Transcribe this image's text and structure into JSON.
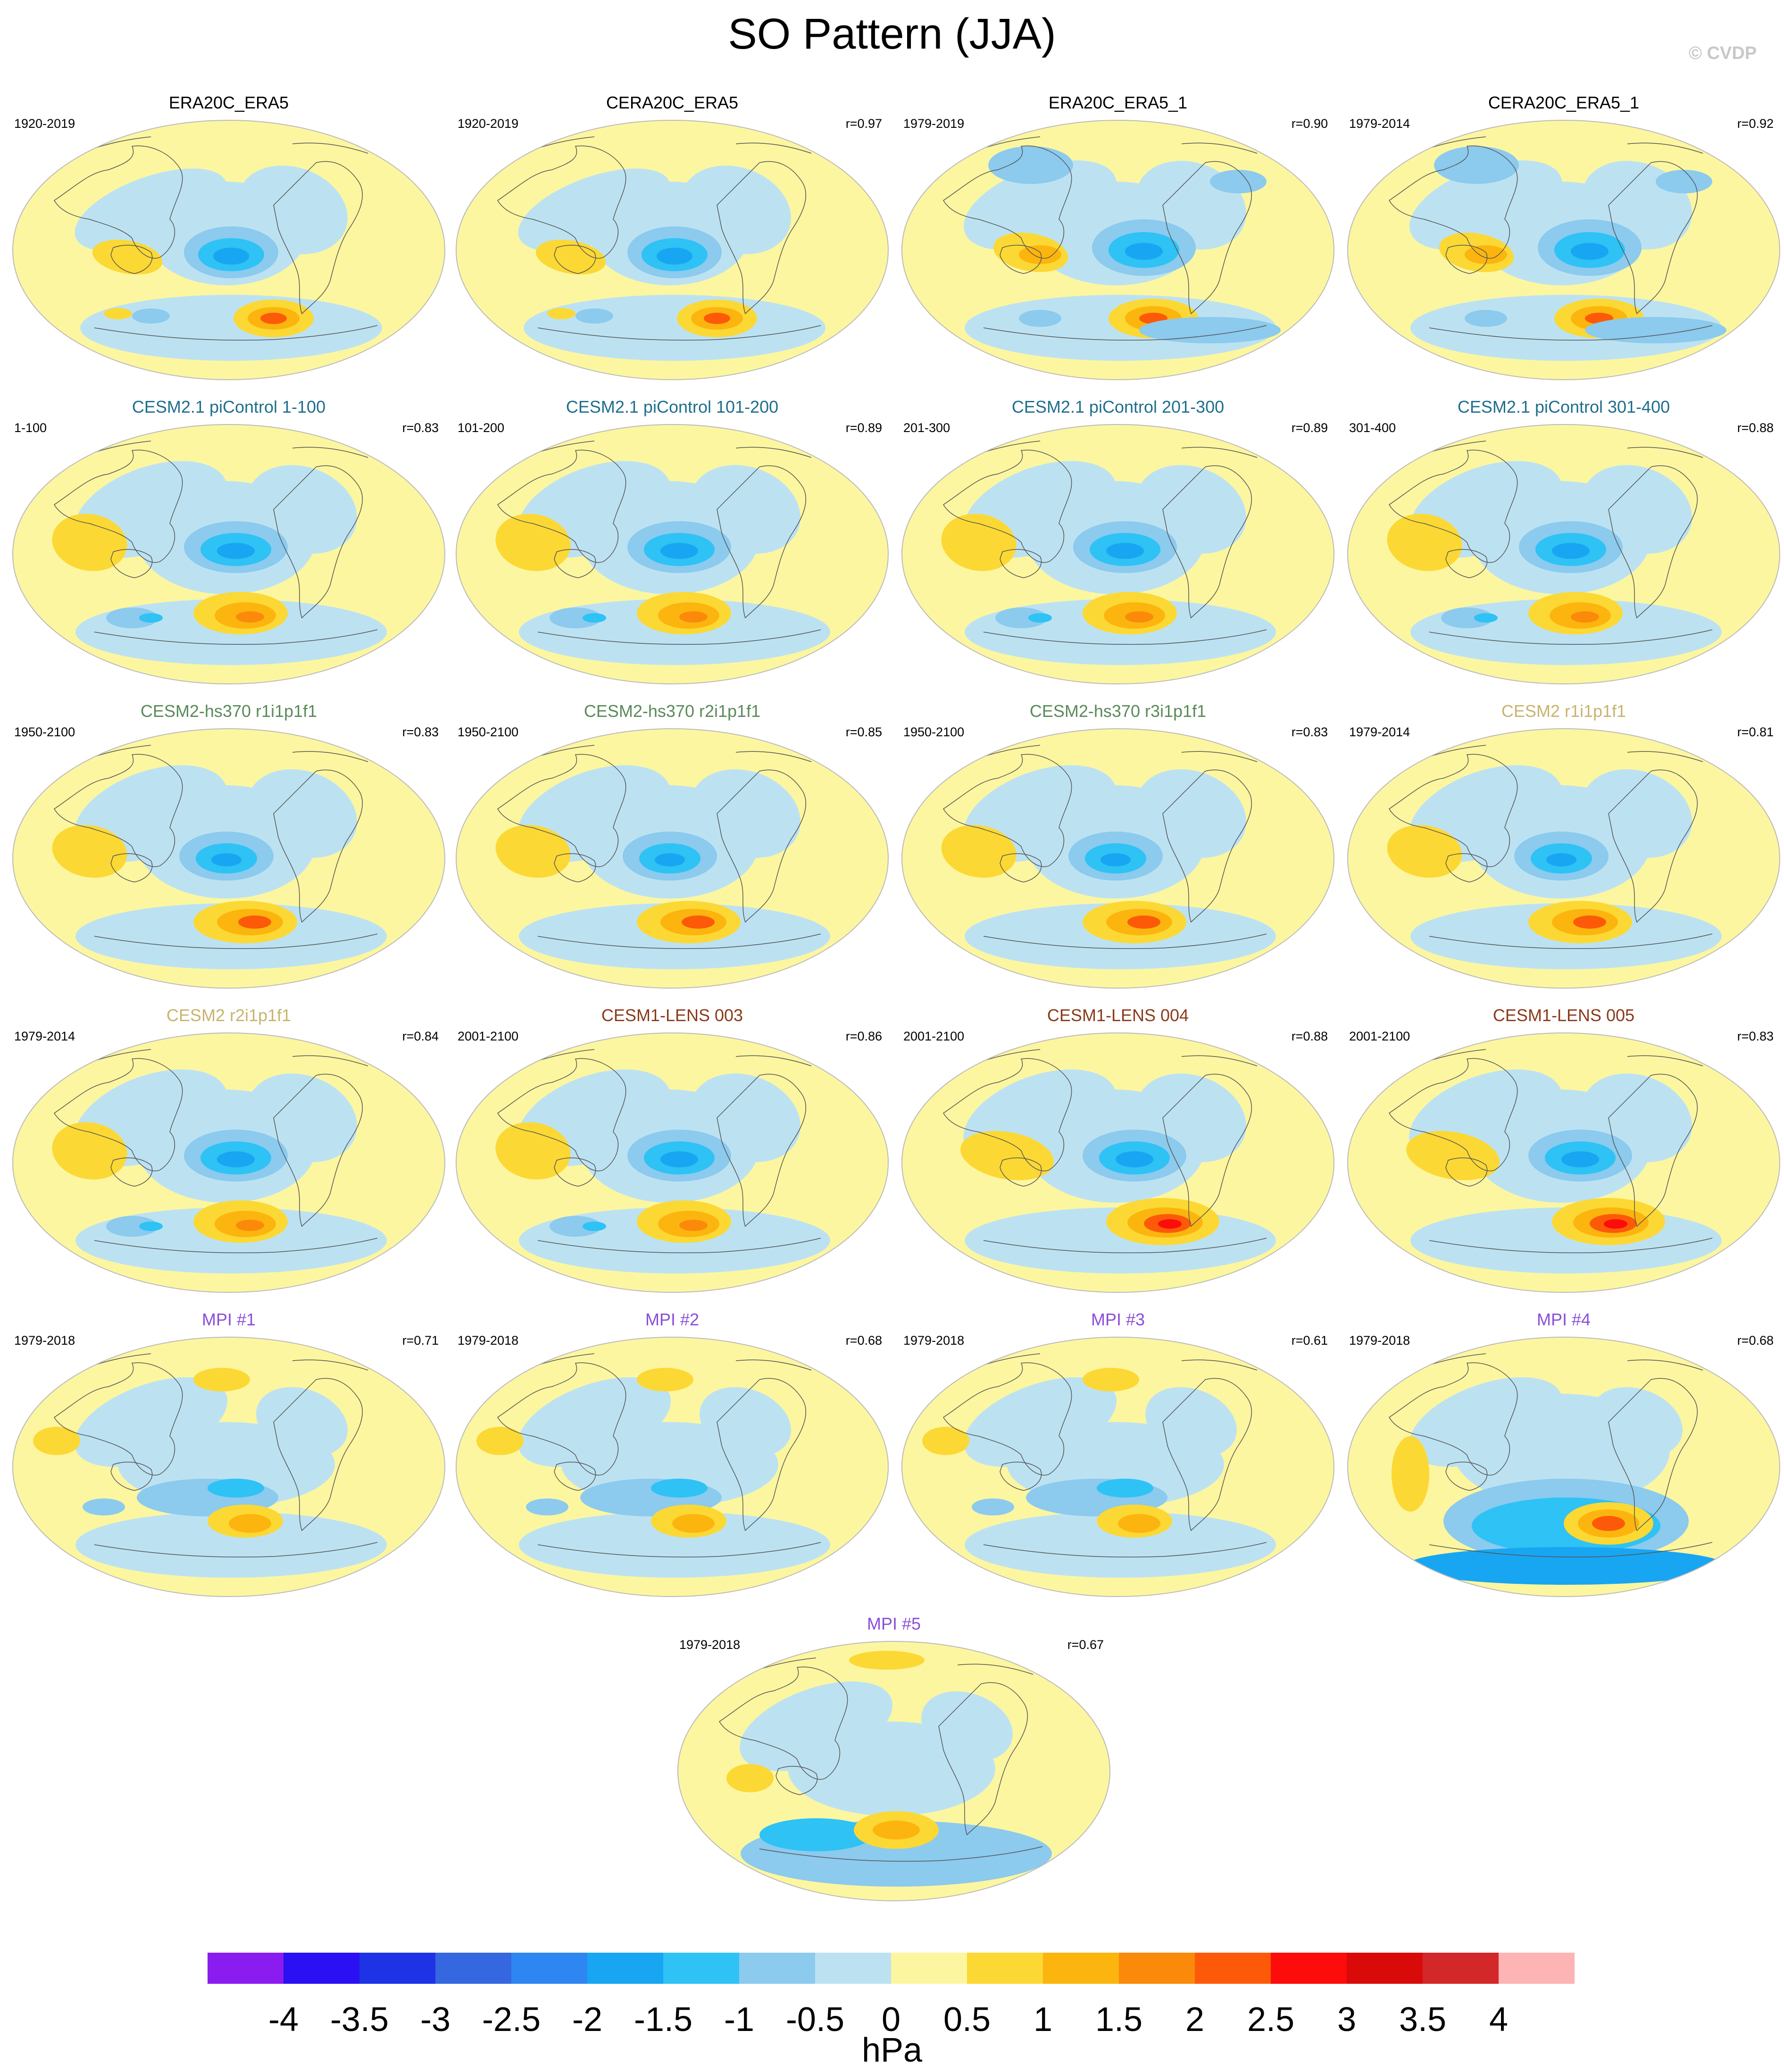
{
  "title": "SO Pattern (JJA)",
  "copyright": "© CVDP",
  "panels": [
    {
      "title": "ERA20C_ERA5",
      "title_color": "#000000",
      "period": "1920-2019",
      "r": "",
      "style": 0
    },
    {
      "title": "CERA20C_ERA5",
      "title_color": "#000000",
      "period": "1920-2019",
      "r": "r=0.97",
      "style": 0
    },
    {
      "title": "ERA20C_ERA5_1",
      "title_color": "#000000",
      "period": "1979-2019",
      "r": "r=0.90",
      "style": 1
    },
    {
      "title": "CERA20C_ERA5_1",
      "title_color": "#000000",
      "period": "1979-2014",
      "r": "r=0.92",
      "style": 1
    },
    {
      "title": "CESM2.1 piControl 1-100",
      "title_color": "#1f6e8c",
      "period": "1-100",
      "r": "r=0.83",
      "style": 2
    },
    {
      "title": "CESM2.1 piControl 101-200",
      "title_color": "#1f6e8c",
      "period": "101-200",
      "r": "r=0.89",
      "style": 2
    },
    {
      "title": "CESM2.1 piControl 201-300",
      "title_color": "#1f6e8c",
      "period": "201-300",
      "r": "r=0.89",
      "style": 2
    },
    {
      "title": "CESM2.1 piControl 301-400",
      "title_color": "#1f6e8c",
      "period": "301-400",
      "r": "r=0.88",
      "style": 2
    },
    {
      "title": "CESM2-hs370 r1i1p1f1",
      "title_color": "#5a8a5a",
      "period": "1950-2100",
      "r": "r=0.83",
      "style": 3
    },
    {
      "title": "CESM2-hs370 r2i1p1f1",
      "title_color": "#5a8a5a",
      "period": "1950-2100",
      "r": "r=0.85",
      "style": 3
    },
    {
      "title": "CESM2-hs370 r3i1p1f1",
      "title_color": "#5a8a5a",
      "period": "1950-2100",
      "r": "r=0.83",
      "style": 3
    },
    {
      "title": "CESM2 r1i1p1f1",
      "title_color": "#c8b46e",
      "period": "1979-2014",
      "r": "r=0.81",
      "style": 3
    },
    {
      "title": "CESM2 r2i1p1f1",
      "title_color": "#c8b46e",
      "period": "1979-2014",
      "r": "r=0.84",
      "style": 2
    },
    {
      "title": "CESM1-LENS 003",
      "title_color": "#8b3a1a",
      "period": "2001-2100",
      "r": "r=0.86",
      "style": 2
    },
    {
      "title": "CESM1-LENS 004",
      "title_color": "#8b3a1a",
      "period": "2001-2100",
      "r": "r=0.88",
      "style": 4
    },
    {
      "title": "CESM1-LENS 005",
      "title_color": "#8b3a1a",
      "period": "2001-2100",
      "r": "r=0.83",
      "style": 4
    },
    {
      "title": "MPI #1",
      "title_color": "#8a4fd8",
      "period": "1979-2018",
      "r": "r=0.71",
      "style": 5
    },
    {
      "title": "MPI #2",
      "title_color": "#8a4fd8",
      "period": "1979-2018",
      "r": "r=0.68",
      "style": 5
    },
    {
      "title": "MPI #3",
      "title_color": "#8a4fd8",
      "period": "1979-2018",
      "r": "r=0.61",
      "style": 5
    },
    {
      "title": "MPI #4",
      "title_color": "#8a4fd8",
      "period": "1979-2018",
      "r": "r=0.68",
      "style": 6
    },
    {
      "title": "MPI #5",
      "title_color": "#8a4fd8",
      "period": "1979-2018",
      "r": "",
      "r_alt": "r=0.67",
      "style": 7
    }
  ],
  "colorbar": {
    "colors": [
      "#8a1cf0",
      "#2a10f2",
      "#1e32e6",
      "#3567e0",
      "#2e86f2",
      "#18a6f2",
      "#2ec2f5",
      "#8ccaee",
      "#bce2f2",
      "#fdf6a0",
      "#fcd834",
      "#fcb50e",
      "#fc8a0a",
      "#fc5a08",
      "#fc0c0a",
      "#d80a0a",
      "#d2282a",
      "#fcb4b4"
    ],
    "labels": [
      "-4",
      "-3.5",
      "-3",
      "-2.5",
      "-2",
      "-1.5",
      "-1",
      "-0.5",
      "0",
      "0.5",
      "1",
      "1.5",
      "2",
      "2.5",
      "3",
      "3.5",
      "4"
    ],
    "units": "hPa"
  }
}
